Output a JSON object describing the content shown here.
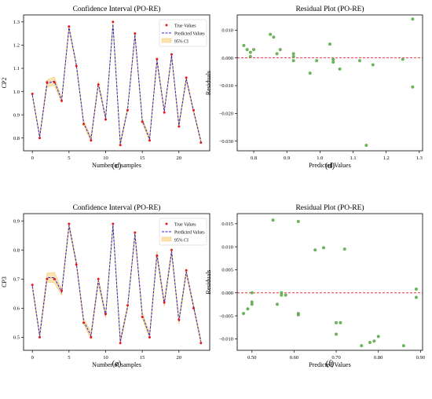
{
  "chart_data": [
    {
      "id": "c",
      "type": "line",
      "caption": "(c)",
      "title": "Confidence Interval (PO-RE)",
      "xlabel": "Number of samples",
      "ylabel": "CP2",
      "xlim": [
        -1.2,
        24.2
      ],
      "ylim": [
        0.745,
        1.33
      ],
      "xticks": [
        0,
        5,
        10,
        15,
        20
      ],
      "yticks": [
        0.8,
        0.9,
        1.0,
        1.1,
        1.2,
        1.3
      ],
      "ytick_labels": [
        "0.8",
        "0.9",
        "1.0",
        "1.1",
        "1.2",
        "1.3"
      ],
      "legend": {
        "position": "top-right",
        "entries": [
          "True Values",
          "Predicted Values",
          "95% CI"
        ]
      },
      "x": [
        0,
        1,
        2,
        3,
        4,
        5,
        6,
        7,
        8,
        9,
        10,
        11,
        12,
        13,
        14,
        15,
        16,
        17,
        18,
        19,
        20,
        21,
        22,
        23
      ],
      "true_values": [
        0.99,
        0.8,
        1.04,
        1.04,
        0.96,
        1.28,
        1.11,
        0.86,
        0.79,
        1.03,
        0.88,
        1.3,
        0.77,
        0.92,
        1.25,
        0.87,
        0.79,
        1.14,
        0.91,
        1.16,
        0.85,
        1.06,
        0.92,
        0.78
      ],
      "predicted_values": [
        0.985,
        0.805,
        1.035,
        1.045,
        0.963,
        1.275,
        1.115,
        0.865,
        0.795,
        1.035,
        0.885,
        1.29,
        0.775,
        0.925,
        1.245,
        0.875,
        0.795,
        1.135,
        0.915,
        1.155,
        0.855,
        1.055,
        0.915,
        0.785
      ],
      "ci_halfwidth": [
        0.008,
        0.008,
        0.015,
        0.018,
        0.01,
        0.01,
        0.008,
        0.01,
        0.012,
        0.01,
        0.008,
        0.01,
        0.01,
        0.008,
        0.01,
        0.01,
        0.01,
        0.012,
        0.01,
        0.01,
        0.01,
        0.01,
        0.008,
        0.008
      ]
    },
    {
      "id": "d",
      "type": "scatter",
      "caption": "(d)",
      "title": "Residual Plot (PO-RE)",
      "xlabel": "Predicted Values",
      "ylabel": "Residuals",
      "xlim": [
        0.75,
        1.31
      ],
      "ylim": [
        -0.0335,
        0.0155
      ],
      "xticks": [
        0.8,
        0.9,
        1.0,
        1.1,
        1.2,
        1.3
      ],
      "xtick_labels": [
        "0.8",
        "0.9",
        "1.0",
        "1.1",
        "1.2",
        "1.3"
      ],
      "yticks": [
        -0.03,
        -0.02,
        -0.01,
        0.0,
        0.01
      ],
      "ytick_labels": [
        "−0.030",
        "−0.020",
        "−0.010",
        "0.000",
        "0.010"
      ],
      "reference_line": 0,
      "x": [
        0.77,
        0.78,
        0.79,
        0.79,
        0.8,
        0.85,
        0.86,
        0.87,
        0.88,
        0.92,
        0.92,
        0.92,
        0.97,
        0.99,
        1.03,
        1.04,
        1.04,
        1.06,
        1.12,
        1.14,
        1.16,
        1.25,
        1.28,
        1.28
      ],
      "y": [
        0.0045,
        0.003,
        0.0005,
        0.002,
        0.003,
        0.0085,
        0.0075,
        0.0015,
        0.003,
        0.0005,
        -0.001,
        0.0015,
        -0.0055,
        -0.001,
        0.005,
        -0.0005,
        -0.0015,
        -0.004,
        -0.001,
        -0.0315,
        -0.0025,
        -0.0005,
        0.014,
        -0.0105
      ]
    },
    {
      "id": "e",
      "type": "line",
      "caption": "(e)",
      "title": "Confidence Interval (PO-RE)",
      "xlabel": "Number of samples",
      "ylabel": "CP3",
      "xlim": [
        -1.2,
        24.2
      ],
      "ylim": [
        0.455,
        0.925
      ],
      "xticks": [
        0,
        5,
        10,
        15,
        20
      ],
      "yticks": [
        0.5,
        0.6,
        0.7,
        0.8,
        0.9
      ],
      "ytick_labels": [
        "0.5",
        "0.6",
        "0.7",
        "0.8",
        "0.9"
      ],
      "legend": {
        "position": "top-right",
        "entries": [
          "True Values",
          "Predicted Values",
          "95% CI"
        ]
      },
      "x": [
        0,
        1,
        2,
        3,
        4,
        5,
        6,
        7,
        8,
        9,
        10,
        11,
        12,
        13,
        14,
        15,
        16,
        17,
        18,
        19,
        20,
        21,
        22,
        23
      ],
      "true_values": [
        0.68,
        0.5,
        0.7,
        0.7,
        0.66,
        0.89,
        0.75,
        0.55,
        0.5,
        0.7,
        0.58,
        0.89,
        0.48,
        0.61,
        0.86,
        0.57,
        0.5,
        0.78,
        0.62,
        0.8,
        0.56,
        0.73,
        0.6,
        0.48
      ],
      "predicted_values": [
        0.675,
        0.505,
        0.705,
        0.705,
        0.655,
        0.885,
        0.755,
        0.555,
        0.505,
        0.695,
        0.575,
        0.885,
        0.485,
        0.605,
        0.855,
        0.575,
        0.505,
        0.785,
        0.615,
        0.795,
        0.555,
        0.725,
        0.605,
        0.485
      ],
      "ci_halfwidth": [
        0.008,
        0.008,
        0.015,
        0.018,
        0.01,
        0.01,
        0.008,
        0.01,
        0.012,
        0.01,
        0.008,
        0.01,
        0.01,
        0.008,
        0.01,
        0.01,
        0.01,
        0.012,
        0.01,
        0.01,
        0.01,
        0.01,
        0.008,
        0.008
      ]
    },
    {
      "id": "f",
      "type": "scatter",
      "caption": "(f)",
      "title": "Residual Plot (PO-RE)",
      "xlabel": "Predicted Values",
      "ylabel": "Residuals",
      "xlim": [
        0.465,
        0.905
      ],
      "ylim": [
        -0.0125,
        0.0172
      ],
      "xticks": [
        0.5,
        0.6,
        0.7,
        0.8,
        0.9
      ],
      "xtick_labels": [
        "0.50",
        "0.60",
        "0.70",
        "0.80",
        "0.90"
      ],
      "yticks": [
        -0.01,
        -0.005,
        0.0,
        0.005,
        0.01,
        0.015
      ],
      "ytick_labels": [
        "−0.010",
        "−0.005",
        "0.000",
        "0.005",
        "0.010",
        "0.015"
      ],
      "reference_line": 0,
      "x": [
        0.48,
        0.49,
        0.5,
        0.5,
        0.5,
        0.55,
        0.56,
        0.57,
        0.57,
        0.58,
        0.61,
        0.61,
        0.61,
        0.65,
        0.67,
        0.7,
        0.7,
        0.71,
        0.72,
        0.76,
        0.78,
        0.79,
        0.8,
        0.86,
        0.89,
        0.89
      ],
      "y": [
        -0.0045,
        -0.0035,
        -0.0025,
        -0.002,
        0.0,
        0.0158,
        -0.0025,
        -0.0005,
        0.0,
        -0.0005,
        0.0155,
        -0.0045,
        -0.0048,
        0.0093,
        0.0098,
        -0.0065,
        -0.009,
        -0.0065,
        0.0095,
        -0.0115,
        -0.0108,
        -0.0105,
        -0.0095,
        -0.0115,
        0.0008,
        -0.001
      ]
    }
  ],
  "colors": {
    "true": "#e8171f",
    "predicted": "#2c22d6",
    "ci_fill": "#fbe3ae",
    "ci_edge": "#f2c65a",
    "residual": "#5cab4a",
    "reference": "#e8171f",
    "axis": "#000000"
  }
}
